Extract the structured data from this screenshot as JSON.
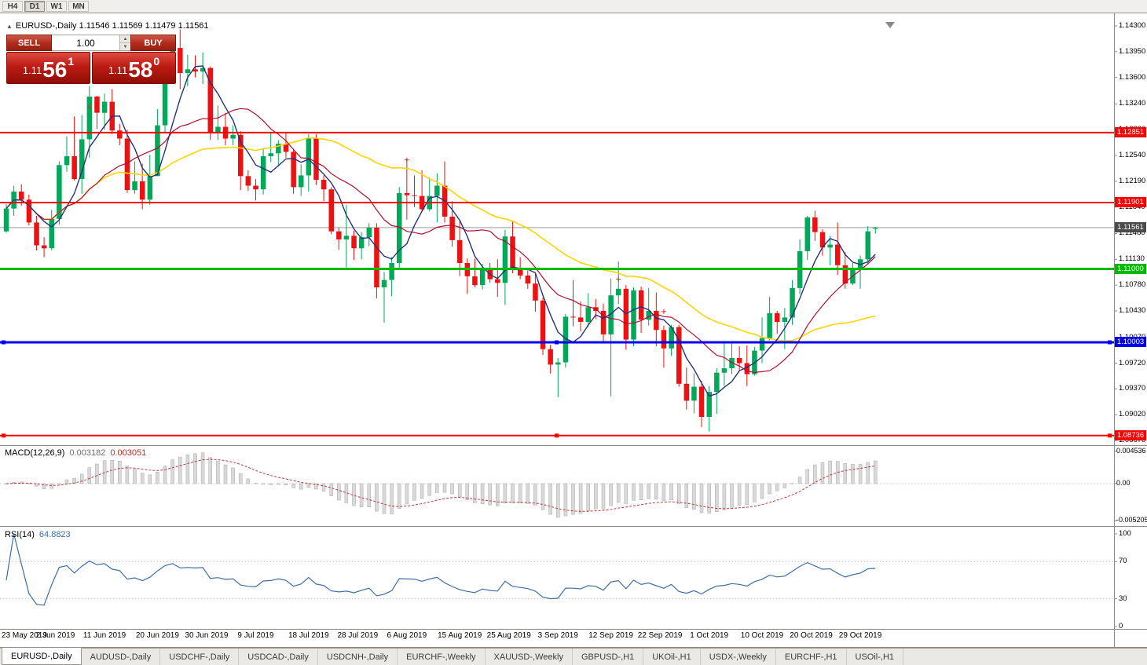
{
  "toolbar": {
    "timeframes": [
      "H4",
      "D1",
      "W1",
      "MN"
    ],
    "selected": "D1"
  },
  "chart": {
    "title": "EURUSD-,Daily 1.11546 1.11569 1.11479 1.11561",
    "symbol": "EURUSD-,Daily"
  },
  "trade_panel": {
    "sell_label": "SELL",
    "buy_label": "BUY",
    "volume": "1.00",
    "sell_price": {
      "prefix": "1.11",
      "big": "56",
      "sup": "1"
    },
    "buy_price": {
      "prefix": "1.11",
      "big": "58",
      "sup": "0"
    }
  },
  "price_axis": {
    "ticks": [
      "1.14300",
      "1.13950",
      "1.13600",
      "1.13240",
      "1.12890",
      "1.12540",
      "1.12190",
      "1.11840",
      "1.11480",
      "1.11130",
      "1.10780",
      "1.10430",
      "1.10070",
      "1.09720",
      "1.09370",
      "1.09020",
      "1.08670"
    ]
  },
  "macd": {
    "label": "MACD(12,26,9)",
    "value1": "0.003182",
    "value2": "0.003051",
    "params": {
      "fast": 12,
      "slow": 26,
      "signal": 9
    },
    "axis": [
      {
        "label": "0.004536",
        "value": 0.004536
      },
      {
        "label": "0.00",
        "value": 0
      },
      {
        "label": "-0.005205",
        "value": -0.005205
      }
    ]
  },
  "rsi": {
    "label": "RSI(14)",
    "value": "64.8823",
    "period": 14,
    "axis": [
      100,
      70,
      30,
      0
    ],
    "levels": [
      70,
      30
    ]
  },
  "date_axis": [
    {
      "label": "23 May 2019",
      "i": 0
    },
    {
      "label": "2 Jun 2019",
      "i": 6.5
    },
    {
      "label": "11 Jun 2019",
      "i": 13
    },
    {
      "label": "20 Jun 2019",
      "i": 20
    },
    {
      "label": "30 Jun 2019",
      "i": 26.5
    },
    {
      "label": "9 Jul 2019",
      "i": 33
    },
    {
      "label": "18 Jul 2019",
      "i": 40
    },
    {
      "label": "28 Jul 2019",
      "i": 46.5
    },
    {
      "label": "6 Aug 2019",
      "i": 53
    },
    {
      "label": "15 Aug 2019",
      "i": 60
    },
    {
      "label": "25 Aug 2019",
      "i": 66.5
    },
    {
      "label": "3 Sep 2019",
      "i": 73
    },
    {
      "label": "12 Sep 2019",
      "i": 80
    },
    {
      "label": "22 Sep 2019",
      "i": 86.5
    },
    {
      "label": "1 Oct 2019",
      "i": 93
    },
    {
      "label": "10 Oct 2019",
      "i": 100
    },
    {
      "label": "20 Oct 2019",
      "i": 106.5
    },
    {
      "label": "29 Oct 2019",
      "i": 113
    }
  ],
  "tabs": [
    {
      "label": "EURUSD-,Daily",
      "active": true
    },
    {
      "label": "AUDUSD-,Daily",
      "active": false
    },
    {
      "label": "USDCHF-,Daily",
      "active": false
    },
    {
      "label": "USDCAD-,Daily",
      "active": false
    },
    {
      "label": "USDCNH-,Daily",
      "active": false
    },
    {
      "label": "EURCHF-,Weekly",
      "active": false
    },
    {
      "label": "XAUUSD-,Weekly",
      "active": false
    },
    {
      "label": "GBPUSD-,H1",
      "active": false
    },
    {
      "label": "UKOil-,H1",
      "active": false
    },
    {
      "label": "USDX-,Weekly",
      "active": false
    },
    {
      "label": "EURCHF-,H1",
      "active": false
    },
    {
      "label": "USOil-,H1",
      "active": false
    }
  ],
  "chart_data": {
    "type": "candlestick",
    "symbol": "EURUSD",
    "timeframe": "Daily",
    "ylim": [
      1.0867,
      1.143
    ],
    "colors": {
      "up": "#00a859",
      "down": "#ee1111"
    },
    "current_price": {
      "value": 1.11561,
      "label": "1.11561",
      "tag_bg": "#4a4a4a"
    },
    "levels": [
      {
        "price": 1.12851,
        "label": "1.12851",
        "color": "#ff0000",
        "width": 2,
        "handles": false
      },
      {
        "price": 1.11901,
        "label": "1.11901",
        "color": "#ff0000",
        "width": 2,
        "handles": false
      },
      {
        "price": 1.11,
        "label": "1.11000",
        "color": "#00bb00",
        "width": 3,
        "handles": false
      },
      {
        "price": 1.10003,
        "label": "1.10003",
        "color": "#0000ee",
        "width": 3,
        "handles": true
      },
      {
        "price": 1.08736,
        "label": "1.08736",
        "color": "#ff0000",
        "width": 2,
        "handles": true
      }
    ],
    "moving_averages": [
      {
        "period": 34,
        "color": "#ffd400",
        "width": 1.6
      },
      {
        "period": 13,
        "color": "#b01030",
        "width": 1.2
      },
      {
        "period": 5,
        "color": "#26317e",
        "width": 1.4
      }
    ],
    "markers": [
      {
        "i": 11,
        "price": 1.132
      },
      {
        "i": 53,
        "price": 1.1248
      },
      {
        "i": 81,
        "price": 1.1086
      },
      {
        "i": 87,
        "price": 1.1042
      }
    ],
    "ohlc": [
      [
        1.1151,
        1.1188,
        1.1149,
        1.1182
      ],
      [
        1.1182,
        1.1213,
        1.1172,
        1.1205
      ],
      [
        1.1205,
        1.1215,
        1.1186,
        1.1194
      ],
      [
        1.1194,
        1.1201,
        1.1159,
        1.1163
      ],
      [
        1.1163,
        1.1172,
        1.1125,
        1.1132
      ],
      [
        1.1132,
        1.1143,
        1.1116,
        1.1128
      ],
      [
        1.1128,
        1.118,
        1.1125,
        1.1168
      ],
      [
        1.1168,
        1.1246,
        1.116,
        1.1241
      ],
      [
        1.1241,
        1.128,
        1.1232,
        1.1253
      ],
      [
        1.1253,
        1.1307,
        1.122,
        1.1222
      ],
      [
        1.1222,
        1.1309,
        1.1202,
        1.1276
      ],
      [
        1.1276,
        1.1348,
        1.1251,
        1.1334
      ],
      [
        1.1334,
        1.1335,
        1.129,
        1.1312
      ],
      [
        1.1312,
        1.1338,
        1.1289,
        1.1327
      ],
      [
        1.1327,
        1.1344,
        1.1283,
        1.1288
      ],
      [
        1.1288,
        1.1297,
        1.1268,
        1.1277
      ],
      [
        1.1277,
        1.1289,
        1.1203,
        1.1207
      ],
      [
        1.1207,
        1.1246,
        1.1202,
        1.1219
      ],
      [
        1.1219,
        1.1243,
        1.1181,
        1.1194
      ],
      [
        1.1194,
        1.1255,
        1.1187,
        1.1226
      ],
      [
        1.1226,
        1.1317,
        1.1226,
        1.1295
      ],
      [
        1.1295,
        1.1378,
        1.1285,
        1.1369
      ],
      [
        1.1369,
        1.1406,
        1.1366,
        1.14
      ],
      [
        1.14,
        1.1425,
        1.1344,
        1.1366
      ],
      [
        1.1366,
        1.1391,
        1.1348,
        1.1371
      ],
      [
        1.1371,
        1.139,
        1.136,
        1.1368
      ],
      [
        1.1368,
        1.1394,
        1.1351,
        1.1373
      ],
      [
        1.1373,
        1.1375,
        1.1275,
        1.1285
      ],
      [
        1.1285,
        1.1322,
        1.1275,
        1.1293
      ],
      [
        1.1293,
        1.1312,
        1.1268,
        1.1277
      ],
      [
        1.1277,
        1.1295,
        1.1268,
        1.1282
      ],
      [
        1.1282,
        1.1287,
        1.1207,
        1.1226
      ],
      [
        1.1226,
        1.1234,
        1.1206,
        1.1213
      ],
      [
        1.1213,
        1.1222,
        1.1193,
        1.1208
      ],
      [
        1.1208,
        1.1264,
        1.1201,
        1.1253
      ],
      [
        1.1253,
        1.1286,
        1.1245,
        1.1257
      ],
      [
        1.1257,
        1.1275,
        1.1239,
        1.127
      ],
      [
        1.127,
        1.1284,
        1.1251,
        1.1259
      ],
      [
        1.1259,
        1.1263,
        1.1202,
        1.1211
      ],
      [
        1.1211,
        1.1242,
        1.1199,
        1.1227
      ],
      [
        1.1227,
        1.1283,
        1.1205,
        1.1277
      ],
      [
        1.1277,
        1.1283,
        1.1214,
        1.1221
      ],
      [
        1.1221,
        1.1227,
        1.1192,
        1.1208
      ],
      [
        1.1208,
        1.1211,
        1.1147,
        1.1151
      ],
      [
        1.1151,
        1.1156,
        1.1126,
        1.114
      ],
      [
        1.114,
        1.1187,
        1.1101,
        1.1145
      ],
      [
        1.1145,
        1.1152,
        1.1112,
        1.1128
      ],
      [
        1.1128,
        1.115,
        1.1113,
        1.1143
      ],
      [
        1.1143,
        1.1162,
        1.1131,
        1.1156
      ],
      [
        1.1156,
        1.1162,
        1.106,
        1.1075
      ],
      [
        1.1075,
        1.1096,
        1.1027,
        1.1085
      ],
      [
        1.1085,
        1.1116,
        1.1063,
        1.1108
      ],
      [
        1.1108,
        1.1211,
        1.1101,
        1.1203
      ],
      [
        1.1203,
        1.125,
        1.1167,
        1.12
      ],
      [
        1.12,
        1.1227,
        1.1184,
        1.1199
      ],
      [
        1.1199,
        1.1234,
        1.1179,
        1.1181
      ],
      [
        1.1181,
        1.1224,
        1.1178,
        1.1199
      ],
      [
        1.1199,
        1.123,
        1.1163,
        1.1213
      ],
      [
        1.1213,
        1.1246,
        1.1163,
        1.1171
      ],
      [
        1.1171,
        1.1192,
        1.113,
        1.1139
      ],
      [
        1.1139,
        1.1166,
        1.109,
        1.1108
      ],
      [
        1.1108,
        1.1114,
        1.1066,
        1.109
      ],
      [
        1.109,
        1.1114,
        1.1075,
        1.1078
      ],
      [
        1.1078,
        1.1107,
        1.1072,
        1.11
      ],
      [
        1.11,
        1.1108,
        1.1081,
        1.1086
      ],
      [
        1.1086,
        1.1113,
        1.1062,
        1.1081
      ],
      [
        1.1081,
        1.1153,
        1.1051,
        1.1144
      ],
      [
        1.1144,
        1.1164,
        1.1094,
        1.1101
      ],
      [
        1.1101,
        1.1116,
        1.1086,
        1.1091
      ],
      [
        1.1091,
        1.1098,
        1.1073,
        1.108
      ],
      [
        1.108,
        1.1093,
        1.1042,
        1.1057
      ],
      [
        1.1057,
        1.1061,
        1.0983,
        1.0991
      ],
      [
        1.0991,
        1.0997,
        1.0958,
        1.097
      ],
      [
        1.097,
        1.0979,
        1.0926,
        1.0973
      ],
      [
        1.0973,
        1.1039,
        1.0966,
        1.1035
      ],
      [
        1.1035,
        1.1085,
        1.1022,
        1.1034
      ],
      [
        1.1034,
        1.1056,
        1.1015,
        1.1028
      ],
      [
        1.1028,
        1.1067,
        1.1021,
        1.1048
      ],
      [
        1.1048,
        1.1059,
        1.1032,
        1.1043
      ],
      [
        1.1043,
        1.1053,
        1.0999,
        1.1011
      ],
      [
        1.1011,
        1.1087,
        1.0927,
        1.1064
      ],
      [
        1.1064,
        1.111,
        1.1052,
        1.1073
      ],
      [
        1.1073,
        1.1078,
        1.099,
        1.1004
      ],
      [
        1.1004,
        1.1075,
        1.0995,
        1.1071
      ],
      [
        1.1071,
        1.1076,
        1.1013,
        1.1031
      ],
      [
        1.1031,
        1.1074,
        1.1023,
        1.1043
      ],
      [
        1.1043,
        1.1068,
        1.0995,
        1.1017
      ],
      [
        1.1017,
        1.1023,
        1.0966,
        1.0992
      ],
      [
        1.0992,
        1.1024,
        1.0982,
        1.1021
      ],
      [
        1.1021,
        1.1024,
        1.094,
        1.0944
      ],
      [
        1.0944,
        1.0966,
        1.0909,
        1.0921
      ],
      [
        1.0921,
        1.0958,
        1.0904,
        1.094
      ],
      [
        1.094,
        1.0948,
        1.0885,
        1.0899
      ],
      [
        1.0899,
        1.0941,
        1.0879,
        1.0933
      ],
      [
        1.0933,
        1.0965,
        1.0903,
        1.0959
      ],
      [
        1.0959,
        1.0999,
        1.0941,
        1.0965
      ],
      [
        1.0965,
        1.0999,
        1.0957,
        1.0979
      ],
      [
        1.0979,
        1.0995,
        1.0962,
        1.0972
      ],
      [
        1.0972,
        1.0996,
        1.0941,
        1.0957
      ],
      [
        1.0957,
        1.0994,
        1.0955,
        1.0989
      ],
      [
        1.0989,
        1.1034,
        1.0972,
        1.1006
      ],
      [
        1.1006,
        1.1062,
        1.1003,
        1.104
      ],
      [
        1.104,
        1.1043,
        1.1012,
        1.1028
      ],
      [
        1.1028,
        1.1047,
        1.0991,
        1.1034
      ],
      [
        1.1034,
        1.1085,
        1.1024,
        1.1074
      ],
      [
        1.1074,
        1.114,
        1.1066,
        1.1124
      ],
      [
        1.1124,
        1.1172,
        1.1112,
        1.117
      ],
      [
        1.117,
        1.1179,
        1.1138,
        1.115
      ],
      [
        1.115,
        1.1154,
        1.1118,
        1.1129
      ],
      [
        1.1129,
        1.1145,
        1.1105,
        1.1133
      ],
      [
        1.1133,
        1.1163,
        1.1092,
        1.1105
      ],
      [
        1.1105,
        1.1123,
        1.1073,
        1.108
      ],
      [
        1.108,
        1.1108,
        1.1078,
        1.1099
      ],
      [
        1.1099,
        1.1118,
        1.1073,
        1.1113
      ],
      [
        1.1113,
        1.1158,
        1.1106,
        1.1151
      ],
      [
        1.11546,
        1.11569,
        1.11479,
        1.11561
      ]
    ]
  }
}
